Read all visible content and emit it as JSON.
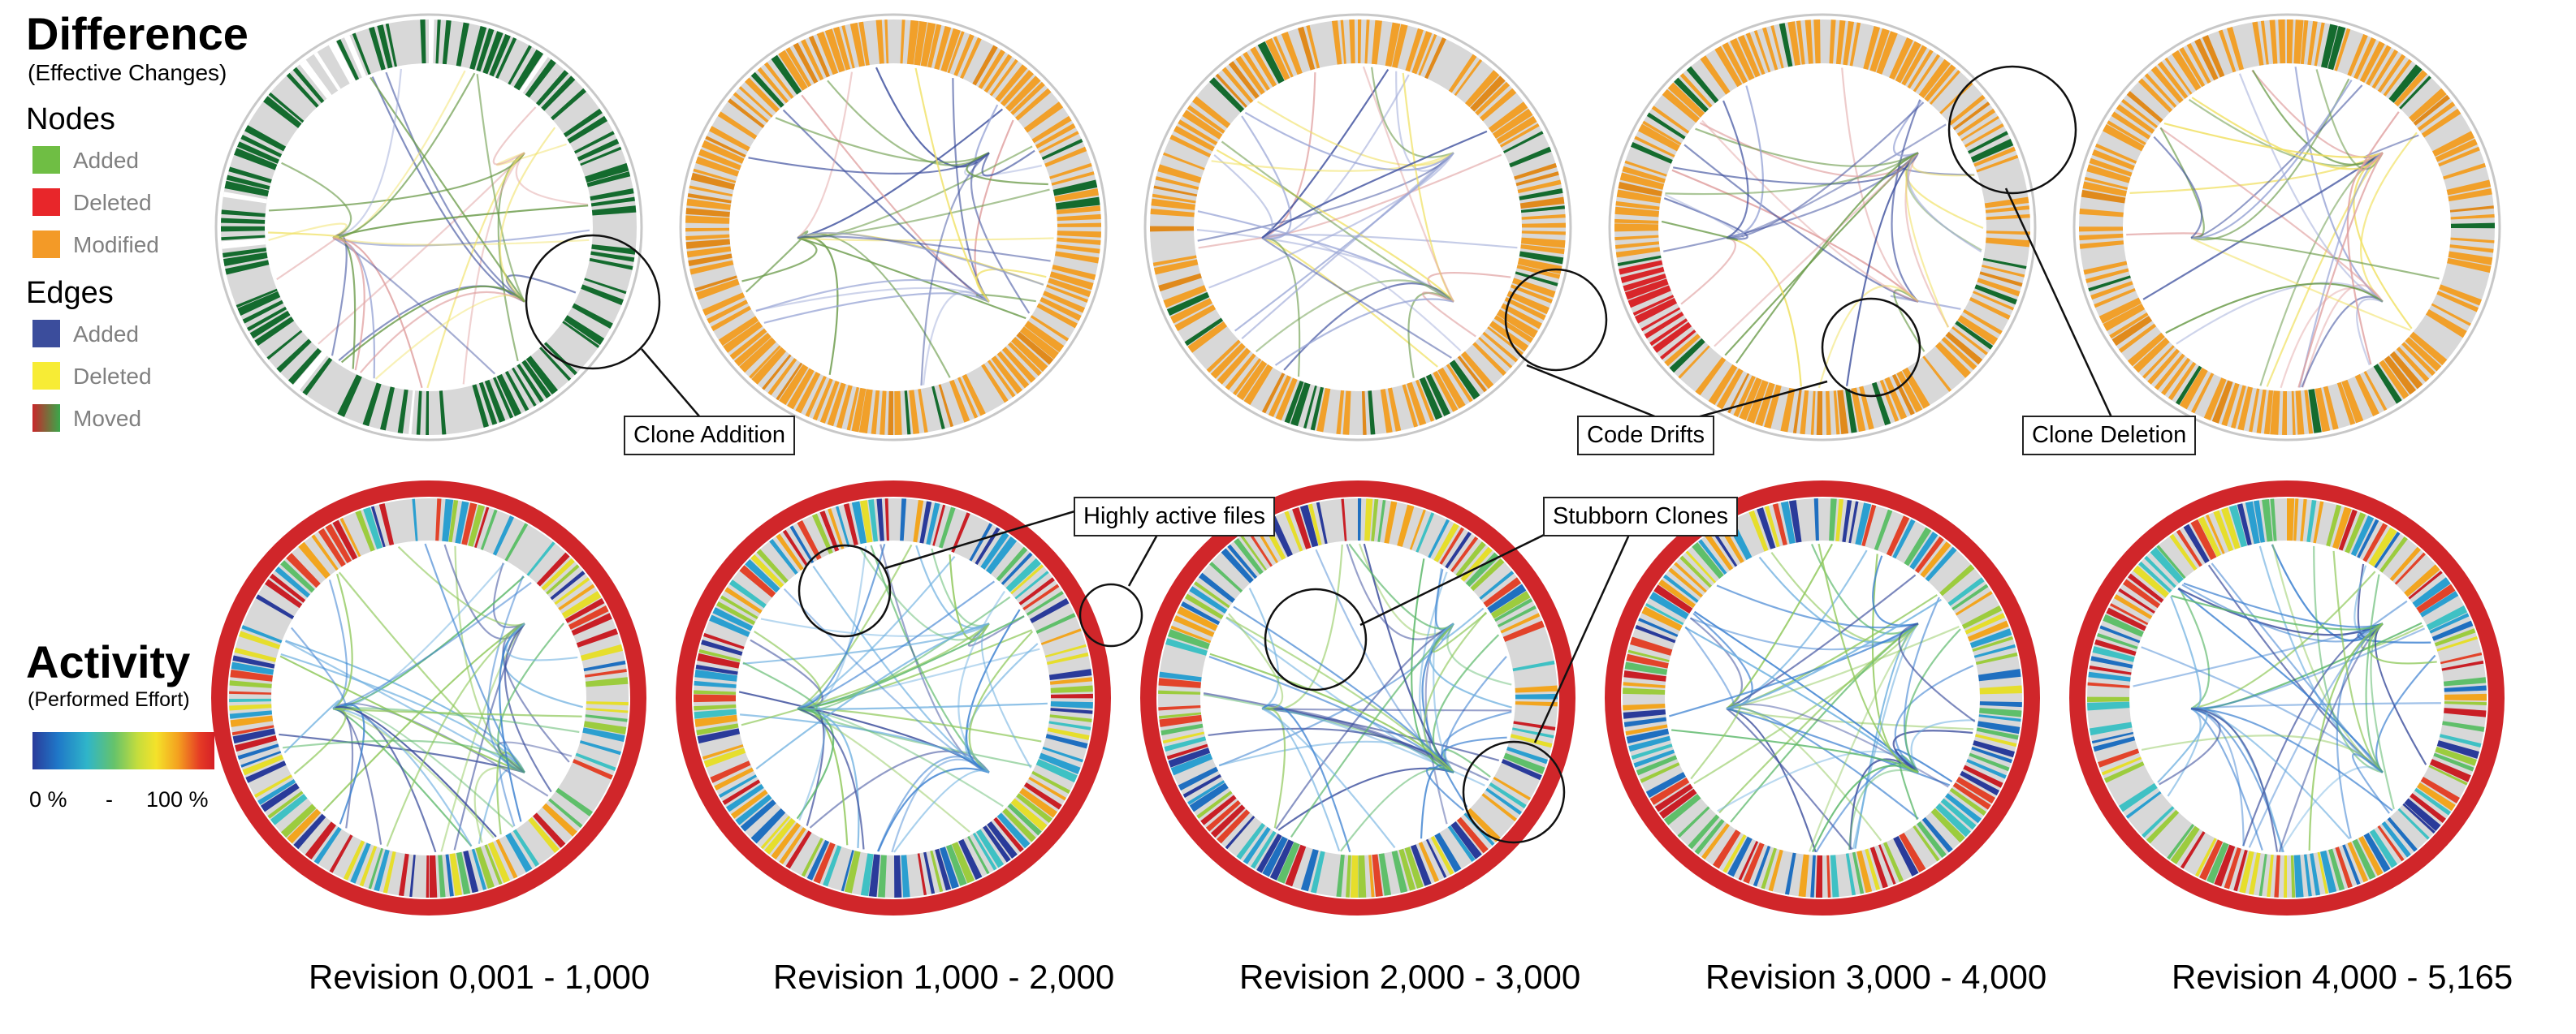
{
  "difference": {
    "title": "Difference",
    "subtitle": "(Effective Changes)",
    "nodes_heading": "Nodes",
    "nodes": [
      {
        "label": "Added",
        "color": "#6fbe44"
      },
      {
        "label": "Deleted",
        "color": "#e8262a"
      },
      {
        "label": "Modified",
        "color": "#f39a27"
      }
    ],
    "edges_heading": "Edges",
    "edges": [
      {
        "label": "Added",
        "color": "#3b4d9c"
      },
      {
        "label": "Deleted",
        "color": "#f7ec35"
      },
      {
        "label": "Moved",
        "color": "#c8262a",
        "color2": "#39a84a"
      }
    ]
  },
  "activity": {
    "title": "Activity",
    "subtitle": "(Performed Effort)",
    "scale_min": "0 %",
    "scale_sep": "-",
    "scale_max": "100 %"
  },
  "callouts": {
    "clone_addition": "Clone Addition",
    "code_drifts": "Code Drifts",
    "clone_deletion": "Clone Deletion",
    "highly_active_files": "Highly active files",
    "stubborn_clones": "Stubborn Clones"
  },
  "revisions": [
    "Revision 0,001 - 1,000",
    "Revision 1,000 - 2,000",
    "Revision 2,000 - 3,000",
    "Revision 3,000 - 4,000",
    "Revision 4,000 - 5,165"
  ],
  "difference_panels": [
    {
      "name": "diff-0001-1000",
      "scheme": "added"
    },
    {
      "name": "diff-1000-2000",
      "scheme": "modified"
    },
    {
      "name": "diff-2000-3000",
      "scheme": "modified"
    },
    {
      "name": "diff-3000-4000",
      "scheme": "modified"
    },
    {
      "name": "diff-4000-5165",
      "scheme": "modified"
    }
  ],
  "activity_panels": [
    {
      "name": "activity-0001-1000"
    },
    {
      "name": "activity-1000-2000"
    },
    {
      "name": "activity-2000-3000"
    },
    {
      "name": "activity-3000-4000"
    },
    {
      "name": "activity-4000-5165"
    }
  ]
}
